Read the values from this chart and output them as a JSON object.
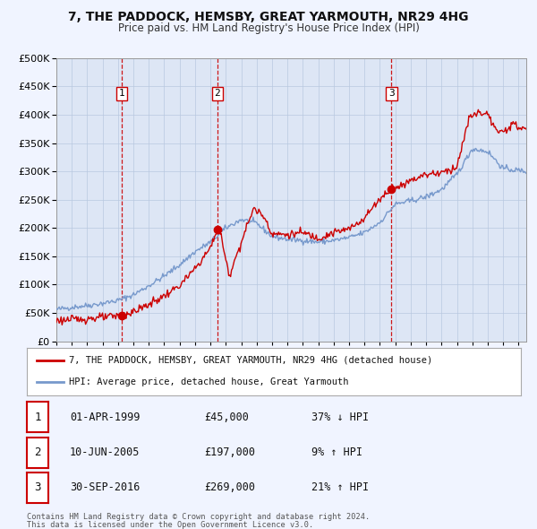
{
  "title": "7, THE PADDOCK, HEMSBY, GREAT YARMOUTH, NR29 4HG",
  "subtitle": "Price paid vs. HM Land Registry's House Price Index (HPI)",
  "legend_label_red": "7, THE PADDOCK, HEMSBY, GREAT YARMOUTH, NR29 4HG (detached house)",
  "legend_label_blue": "HPI: Average price, detached house, Great Yarmouth",
  "footnote1": "Contains HM Land Registry data © Crown copyright and database right 2024.",
  "footnote2": "This data is licensed under the Open Government Licence v3.0.",
  "sale_points": [
    {
      "label": "1",
      "date_str": "01-APR-1999",
      "price_str": "£45,000",
      "hpi_str": "37% ↓ HPI",
      "year": 1999.25
    },
    {
      "label": "2",
      "date_str": "10-JUN-2005",
      "price_str": "£197,000",
      "hpi_str": "9% ↑ HPI",
      "year": 2005.44
    },
    {
      "label": "3",
      "date_str": "30-SEP-2016",
      "price_str": "£269,000",
      "hpi_str": "21% ↑ HPI",
      "year": 2016.75
    }
  ],
  "sale_values": [
    45000,
    197000,
    269000
  ],
  "ylim": [
    0,
    500000
  ],
  "yticks": [
    0,
    50000,
    100000,
    150000,
    200000,
    250000,
    300000,
    350000,
    400000,
    450000,
    500000
  ],
  "xlim_start": 1995.0,
  "xlim_end": 2025.5,
  "background_color": "#f0f4ff",
  "plot_bg_color": "#dde6f5",
  "red_color": "#cc0000",
  "blue_color": "#7799cc",
  "vline_color": "#cc0000",
  "grid_color": "#b8c8e0"
}
